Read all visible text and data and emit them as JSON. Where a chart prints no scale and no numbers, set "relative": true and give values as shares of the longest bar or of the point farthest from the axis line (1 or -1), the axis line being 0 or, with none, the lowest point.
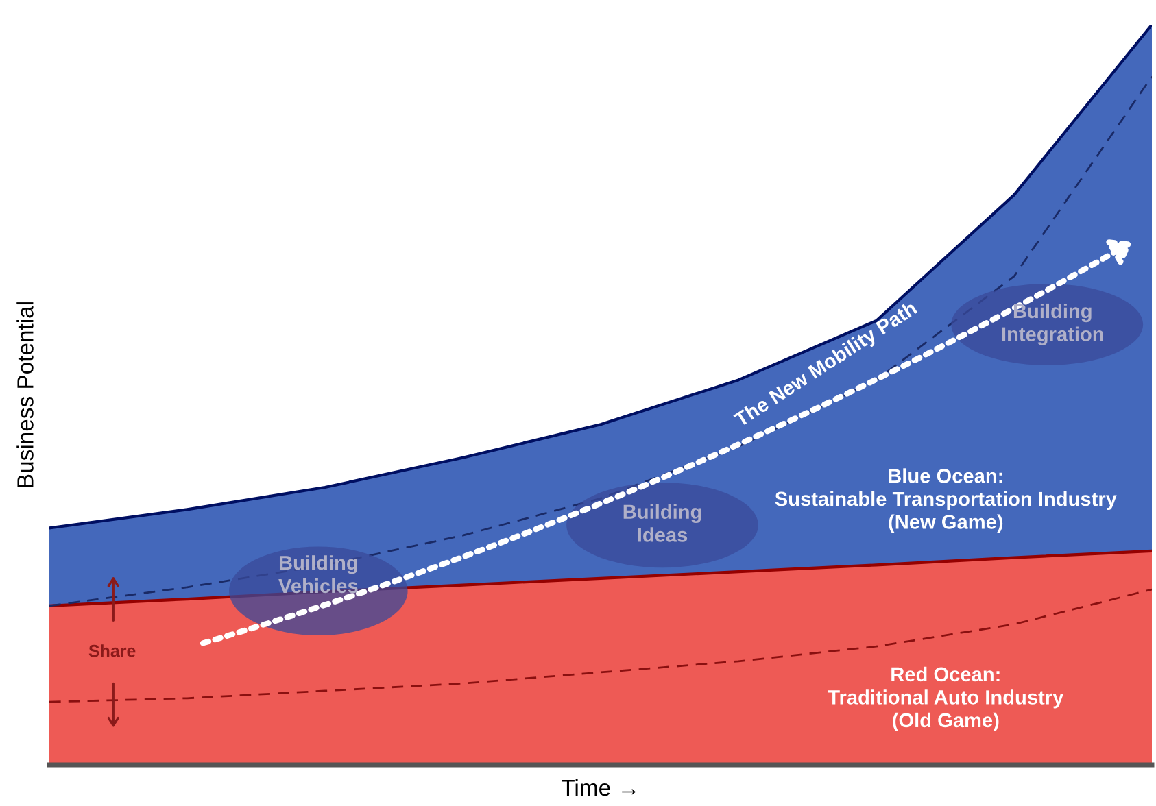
{
  "chart_data": {
    "type": "area",
    "relative": true,
    "xlabel": "Time →",
    "ylabel": "Business Potential",
    "legend": false,
    "grid": false,
    "categories": [
      null,
      null,
      null,
      null,
      null,
      null,
      null,
      null,
      null
    ],
    "series": [
      {
        "color": "#4468bb",
        "values": [
          0.32,
          0.345,
          0.375,
          0.415,
          0.46,
          0.52,
          0.6,
          0.77,
          1
        ]
      },
      {
        "color": "#ee5a55",
        "values": [
          0.215,
          0.224,
          0.234,
          0.243,
          0.252,
          0.261,
          0.27,
          0.28,
          0.289
        ]
      },
      {
        "type": "line",
        "color": "#1a2a66",
        "line_style": "dashed",
        "values": [
          0.215,
          0.24,
          0.27,
          0.31,
          0.36,
          0.43,
          0.52,
          0.66,
          0.93
        ]
      },
      {
        "type": "line",
        "color": "#8a1010",
        "line_style": "dashed",
        "values": [
          0.085,
          0.09,
          0.1,
          0.11,
          0.125,
          0.14,
          0.16,
          0.19,
          0.237
        ]
      }
    ],
    "annotations": [
      "Blue Ocean:\nSustainable Transportation Industry\n(New Game)",
      "Red Ocean:\nTraditional Auto Industry\n(Old Game)",
      "The New Mobility Path",
      "Building\nVehicles",
      "Building\nIdeas",
      "Building\nIntegration",
      "Share"
    ]
  }
}
